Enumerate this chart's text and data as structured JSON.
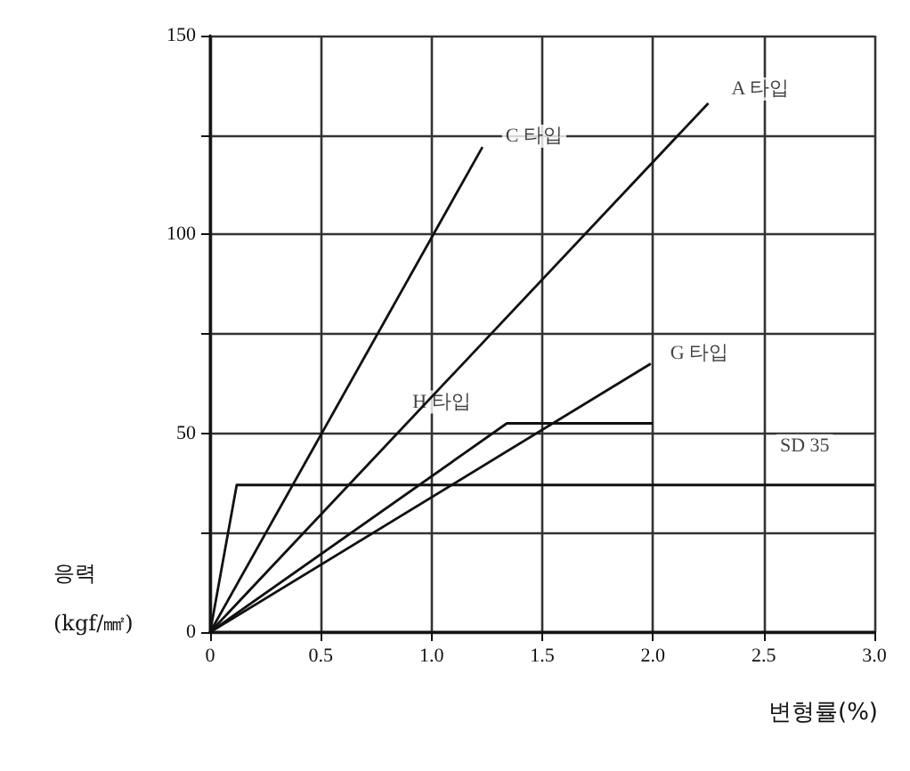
{
  "chart_data": {
    "type": "line",
    "xlabel": "변형률(%)",
    "ylabel": "응력\n(kgf/㎟)",
    "xlim": [
      0,
      3.0
    ],
    "ylim": [
      0,
      150
    ],
    "xticks": [
      0,
      0.5,
      {
        "value": 1,
        "label": "1.0"
      },
      1.5,
      {
        "value": 2,
        "label": "2.0"
      },
      2.5,
      {
        "value": 3,
        "label": "3.0"
      }
    ],
    "yticks": [
      0,
      {
        "value": 25,
        "label": null
      },
      50,
      {
        "value": 75,
        "label": null
      },
      100,
      {
        "value": 125,
        "label": null
      },
      150
    ],
    "grid": true,
    "marker": "none",
    "line_style": "solid",
    "series": [
      {
        "color": "#111111",
        "x": [
          0,
          1.23
        ],
        "values": [
          0,
          122
        ]
      },
      {
        "color": "#111111",
        "x": [
          0,
          2.25
        ],
        "values": [
          0,
          133
        ]
      },
      {
        "color": "#111111",
        "x": [
          0,
          1.34,
          2.0
        ],
        "values": [
          0,
          52.5,
          52.5
        ]
      },
      {
        "color": "#111111",
        "x": [
          0,
          1.99
        ],
        "values": [
          0,
          67.5
        ]
      },
      {
        "color": "#111111",
        "x": [
          0,
          0.12,
          3.0
        ],
        "values": [
          0,
          37,
          37
        ]
      }
    ],
    "annotations": [
      {
        "text": "C 타입",
        "x": 1.23,
        "y": 122
      },
      {
        "text": "A 타입",
        "x": 2.25,
        "y": 133
      },
      {
        "text": "H 타입",
        "x": 1.34,
        "y": 52.5
      },
      {
        "text": "G 타입",
        "x": 1.99,
        "y": 67.5
      },
      {
        "text": "SD 35",
        "x": 3.0,
        "y": 37
      }
    ]
  }
}
